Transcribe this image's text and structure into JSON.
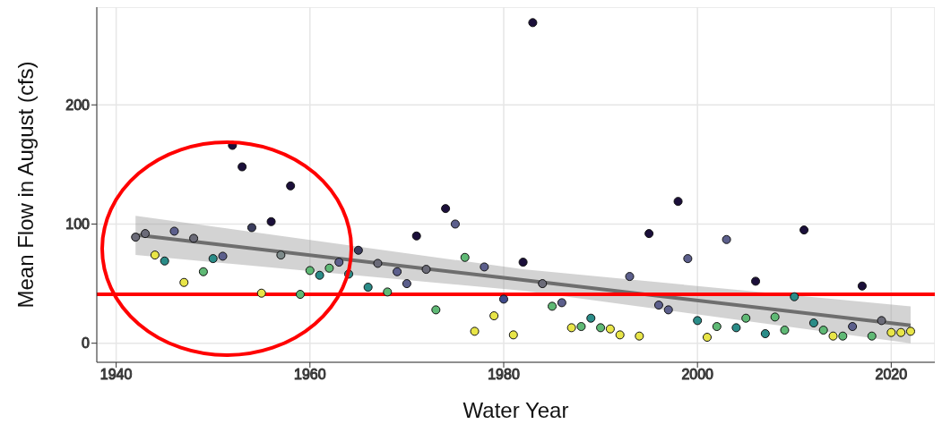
{
  "chart_data": {
    "type": "scatter",
    "xlabel": "Water Year",
    "ylabel": "Mean Flow in August (cfs)",
    "xlim": [
      1938,
      2024.5
    ],
    "xticks": [
      1940,
      1960,
      1980,
      2000,
      2020
    ],
    "ylim": [
      -16,
      282
    ],
    "yticks": [
      0,
      100,
      200
    ],
    "grid": true,
    "series": [
      {
        "marker": "circle",
        "x": [
          1942,
          1943,
          1944,
          1945,
          1946,
          1947,
          1948,
          1949,
          1950,
          1951,
          1952,
          1953,
          1954,
          1955,
          1956,
          1957,
          1958,
          1959,
          1960,
          1961,
          1962,
          1963,
          1964,
          1965,
          1966,
          1967,
          1968,
          1969,
          1970,
          1971,
          1972,
          1973,
          1974,
          1975,
          1976,
          1977,
          1978,
          1979,
          1980,
          1981,
          1982,
          1983,
          1984,
          1985,
          1986,
          1987,
          1988,
          1989,
          1990,
          1991,
          1992,
          1993,
          1994,
          1995,
          1996,
          1997,
          1998,
          1999,
          2000,
          2001,
          2002,
          2003,
          2004,
          2005,
          2006,
          2007,
          2008,
          2009,
          2010,
          2011,
          2012,
          2013,
          2014,
          2015,
          2016,
          2017,
          2018,
          2019,
          2020,
          2021,
          2022
        ],
        "values": [
          89,
          92,
          74,
          69,
          94,
          51,
          88,
          60,
          71,
          73,
          166,
          148,
          97,
          42,
          102,
          74,
          132,
          41,
          61,
          57,
          63,
          68,
          58,
          78,
          47,
          67,
          43,
          60,
          50,
          90,
          62,
          28,
          113,
          100,
          72,
          10,
          64,
          23,
          37,
          7,
          68,
          269,
          50,
          31,
          34,
          13,
          14,
          21,
          13,
          12,
          7,
          56,
          6,
          92,
          32,
          28,
          119,
          71,
          19,
          5,
          14,
          87,
          13,
          21,
          52,
          8,
          22,
          11,
          39,
          95,
          17,
          11,
          6,
          6,
          14,
          48,
          6,
          19,
          9,
          9,
          10
        ],
        "colors": [
          "#6b6b78",
          "#6b6b78",
          "#e8e548",
          "#2a8c88",
          "#5c5f8c",
          "#e8e548",
          "#6b6b78",
          "#5fb975",
          "#2a8c88",
          "#5c5f8c",
          "#1b0f3a",
          "#1b0f3a",
          "#3b3d5e",
          "#e8e548",
          "#1b0f3a",
          "#7d8a8a",
          "#1b0f3a",
          "#5fb975",
          "#5fb975",
          "#2a8c88",
          "#5fb975",
          "#5c5f8c",
          "#2a8c88",
          "#3b3d5e",
          "#2a8c88",
          "#6b6b78",
          "#5fb975",
          "#5c5f8c",
          "#5c5f8c",
          "#1b0f3a",
          "#6b6b78",
          "#5fb975",
          "#1b0f3a",
          "#5c5f8c",
          "#5fb975",
          "#e8e548",
          "#5c5f8c",
          "#e8e548",
          "#3f4a8a",
          "#e8e548",
          "#1b0f3a",
          "#1b0f3a",
          "#6b6b78",
          "#5fb975",
          "#5c5f8c",
          "#e8e548",
          "#5fb975",
          "#2a8c88",
          "#5fb975",
          "#e8e548",
          "#e8e548",
          "#5c5f8c",
          "#e8e548",
          "#1b0f3a",
          "#5c5f8c",
          "#5c5f8c",
          "#1b0f3a",
          "#5c5f8c",
          "#2a8c88",
          "#e8e548",
          "#5fb975",
          "#5c5f8c",
          "#2a8c88",
          "#5fb975",
          "#1b0f3a",
          "#2a8c88",
          "#5fb975",
          "#5fb975",
          "#2a8c88",
          "#1b0f3a",
          "#2a8c88",
          "#5fb975",
          "#e8e548",
          "#5fb975",
          "#5c5f8c",
          "#1b0f3a",
          "#5fb975",
          "#6b6b78",
          "#e8e548",
          "#e8e548",
          "#e8e548"
        ]
      },
      {
        "type": "line",
        "x": [
          1942,
          1982,
          2022
        ],
        "values": [
          91,
          53,
          15
        ],
        "lower": [
          74,
          44,
          0
        ],
        "upper": [
          107,
          62,
          31
        ],
        "color": "#6e6e6e"
      }
    ],
    "ref_lines": [
      {
        "axis": "y",
        "value": 41,
        "color": "#ff0000"
      }
    ]
  }
}
